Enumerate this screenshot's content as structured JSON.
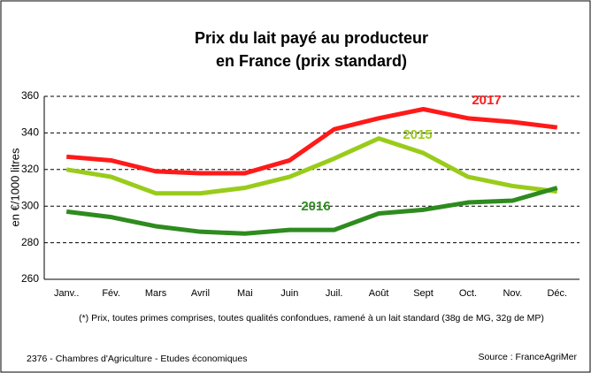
{
  "chart_data": {
    "type": "line",
    "title": [
      "Prix du lait payé au producteur",
      "en France (prix standard)"
    ],
    "ylabel": "en €/1000 litres",
    "categories": [
      "Janv..",
      "Fév.",
      "Mars",
      "Avril",
      "Mai",
      "Juin",
      "Juil.",
      "Août",
      "Sept",
      "Oct.",
      "Nov.",
      "Déc."
    ],
    "series": [
      {
        "name": "2017",
        "color": "#ff1a1a",
        "values": [
          327,
          325,
          319,
          318,
          318,
          325,
          342,
          348,
          353,
          348,
          346,
          343
        ]
      },
      {
        "name": "2015",
        "color": "#99cc1a",
        "values": [
          320,
          316,
          307,
          307,
          310,
          316,
          326,
          337,
          329,
          316,
          311,
          308
        ]
      },
      {
        "name": "2016",
        "color": "#2e8b1e",
        "values": [
          297,
          294,
          289,
          286,
          285,
          287,
          287,
          296,
          298,
          302,
          303,
          310
        ]
      }
    ],
    "ylim": [
      260,
      360
    ],
    "yticks": [
      260,
      280,
      300,
      320,
      340,
      360
    ],
    "grid": true,
    "footnote": "(*) Prix, toutes primes comprises, toutes qualités confondues, ramené à un lait standard (38g de MG, 32g de MP)",
    "credit": "2376 - Chambres d'Agriculture - Etudes économiques",
    "source": "Source :  FranceAgriMer"
  }
}
